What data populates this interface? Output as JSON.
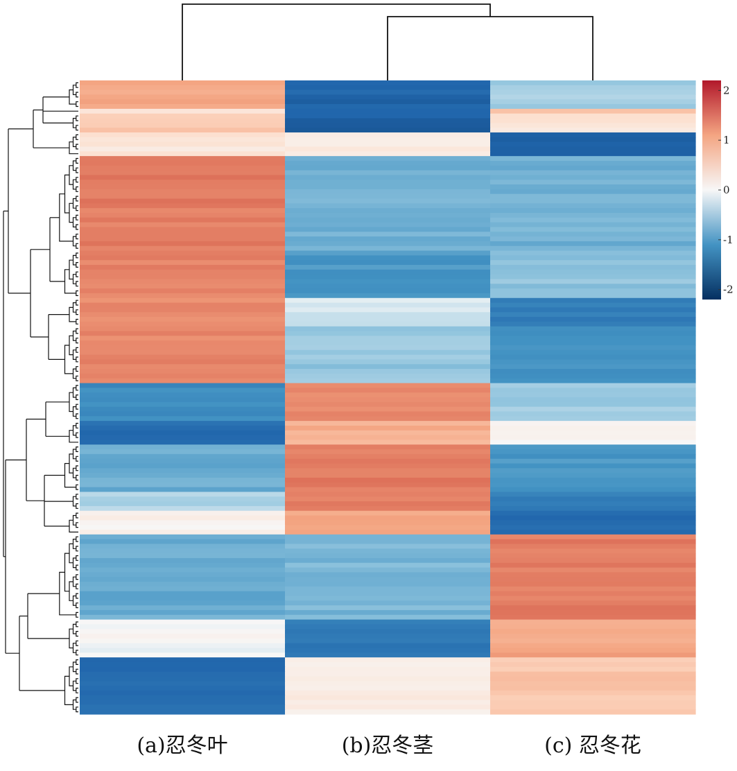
{
  "chart_data": {
    "type": "heatmap",
    "title": "",
    "xlabel": "",
    "ylabel": "",
    "columns": [
      "(a)忍冬叶",
      "(b)忍冬茎",
      "(c) 忍冬花"
    ],
    "color_scale": {
      "min": -2.2,
      "max": 2.2,
      "ticks": [
        2,
        1,
        0,
        -1,
        -2
      ],
      "tick_labels": [
        "2",
        "1",
        "0",
        "-1",
        "-2"
      ],
      "low_color": "#053061",
      "mid_color": "#f7f7f7",
      "high_color": "#b2182b"
    },
    "row_clusters": [
      {
        "rows": 6,
        "values": [
          1.0,
          -1.6,
          -0.4
        ]
      },
      {
        "rows": 1,
        "values": [
          0.3,
          -1.6,
          0.8
        ]
      },
      {
        "rows": 4,
        "values": [
          0.7,
          -1.7,
          0.3
        ]
      },
      {
        "rows": 5,
        "values": [
          0.3,
          0.2,
          -1.6
        ]
      },
      {
        "rows": 20,
        "values": [
          1.35,
          -0.7,
          -0.7
        ]
      },
      {
        "rows": 10,
        "values": [
          1.3,
          -0.95,
          -0.5
        ]
      },
      {
        "rows": 6,
        "values": [
          1.25,
          -0.15,
          -1.3
        ]
      },
      {
        "rows": 12,
        "values": [
          1.25,
          -0.5,
          -1.05
        ]
      },
      {
        "rows": 8,
        "values": [
          -1.1,
          1.25,
          -0.4
        ]
      },
      {
        "rows": 5,
        "values": [
          -1.5,
          0.9,
          0.1
        ]
      },
      {
        "rows": 10,
        "values": [
          -0.75,
          1.35,
          -0.95
        ]
      },
      {
        "rows": 4,
        "values": [
          -0.35,
          1.3,
          -1.3
        ]
      },
      {
        "rows": 5,
        "values": [
          0.1,
          1.0,
          -1.55
        ]
      },
      {
        "rows": 18,
        "values": [
          -0.75,
          -0.65,
          1.35
        ]
      },
      {
        "rows": 8,
        "values": [
          0.0,
          -1.35,
          1.0
        ]
      },
      {
        "rows": 12,
        "values": [
          -1.5,
          0.2,
          0.7
        ]
      }
    ]
  }
}
